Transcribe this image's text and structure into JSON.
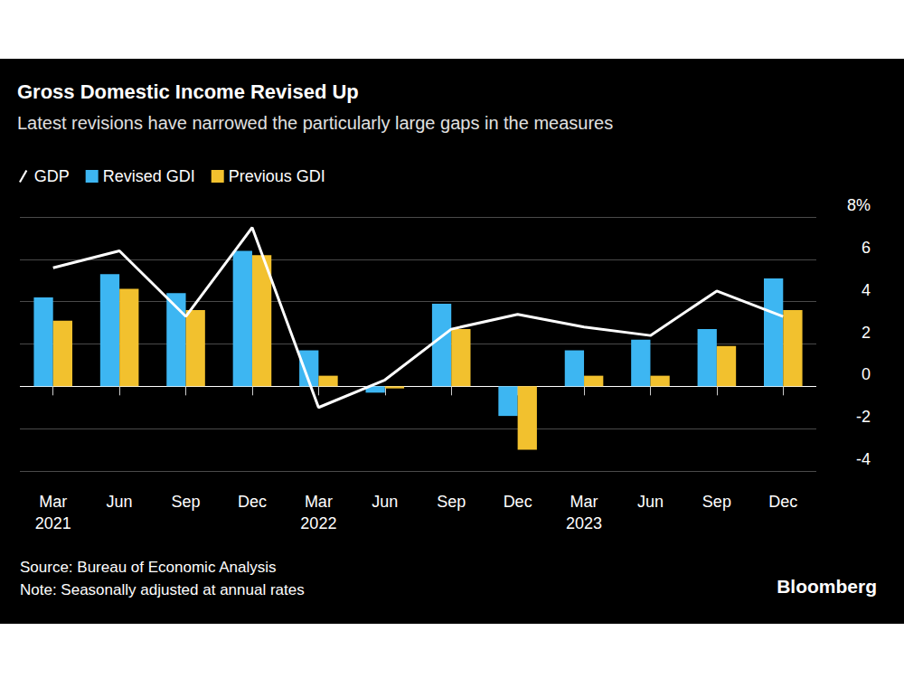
{
  "chart_data": {
    "type": "bar",
    "title": "Gross Domestic Income Revised Up",
    "subtitle": "Latest revisions have narrowed the particularly large gaps in the measures",
    "categories": [
      "Mar\n2021",
      "Jun",
      "Sep",
      "Dec",
      "Mar\n2022",
      "Jun",
      "Sep",
      "Dec",
      "Mar\n2023",
      "Jun",
      "Sep",
      "Dec"
    ],
    "series": [
      {
        "name": "GDP",
        "type": "line",
        "color": "#ffffff",
        "line_style": "solid",
        "marker": "none",
        "values": [
          5.6,
          6.4,
          3.3,
          7.5,
          -1.0,
          0.3,
          2.7,
          3.4,
          2.8,
          2.4,
          4.5,
          3.3
        ]
      },
      {
        "name": "Revised GDI",
        "type": "bar",
        "color": "#3db6f2",
        "values": [
          4.2,
          5.3,
          4.4,
          6.4,
          1.7,
          -0.3,
          3.9,
          -1.4,
          1.7,
          2.2,
          2.7,
          5.1
        ]
      },
      {
        "name": "Previous GDI",
        "type": "bar",
        "color": "#f2c12e",
        "values": [
          3.1,
          4.6,
          3.6,
          6.2,
          0.5,
          -0.1,
          2.7,
          -3.0,
          0.5,
          0.5,
          1.9,
          3.6
        ]
      }
    ],
    "ylim": [
      -4,
      8
    ],
    "yticks": [
      -4,
      -2,
      0,
      2,
      4,
      6,
      {
        "value": 8,
        "label": "8%"
      }
    ],
    "grid": true,
    "legend": "top-left",
    "source": "Source: Bureau of Economic Analysis",
    "note": "Note: Seasonally adjusted at annual rates",
    "brand": "Bloomberg"
  }
}
